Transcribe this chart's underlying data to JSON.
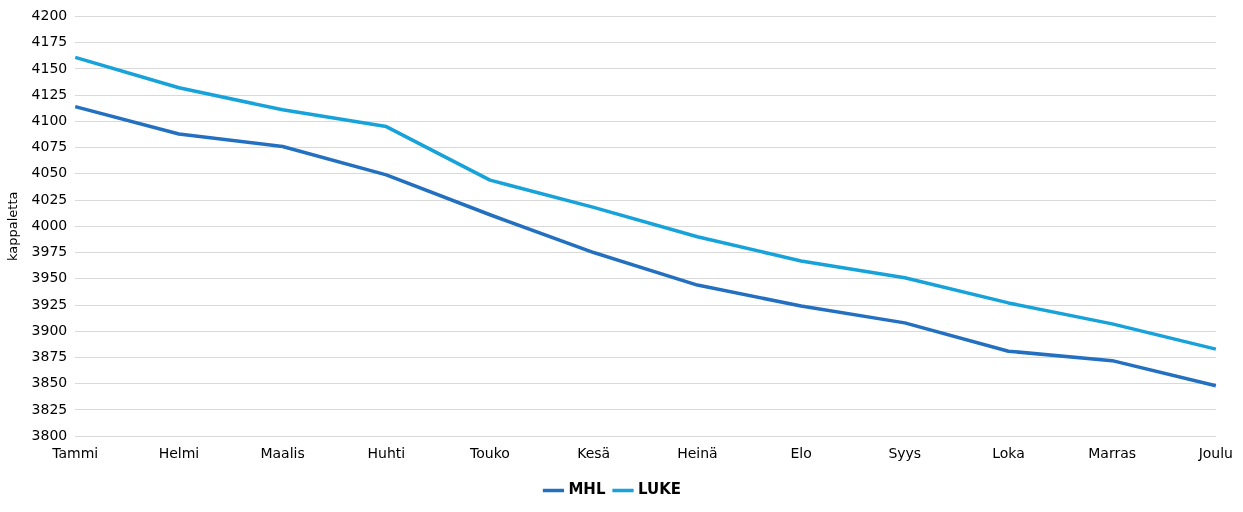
{
  "chart_data": {
    "type": "line",
    "ylabel": "kappaletta",
    "categories": [
      "Tammi",
      "Helmi",
      "Maalis",
      "Huhti",
      "Touko",
      "Kesä",
      "Heinä",
      "Elo",
      "Syys",
      "Loka",
      "Marras",
      "Joulu"
    ],
    "series": [
      {
        "name": "MHL",
        "color": "#2470c0",
        "values": [
          4114,
          4088,
          4076,
          4049,
          4011,
          3975,
          3944,
          3924,
          3908,
          3881,
          3872,
          3848
        ]
      },
      {
        "name": "LUKE",
        "color": "#17a3d9",
        "values": [
          4161,
          4132,
          4111,
          4095,
          4044,
          4018,
          3990,
          3967,
          3951,
          3927,
          3907,
          3883
        ]
      }
    ],
    "ylim": [
      3800,
      4200
    ],
    "yticks": [
      3800,
      3825,
      3850,
      3875,
      3900,
      3925,
      3950,
      3975,
      4000,
      4025,
      4050,
      4075,
      4100,
      4125,
      4150,
      4175,
      4200
    ],
    "grid": "y",
    "legend": "bottom"
  }
}
